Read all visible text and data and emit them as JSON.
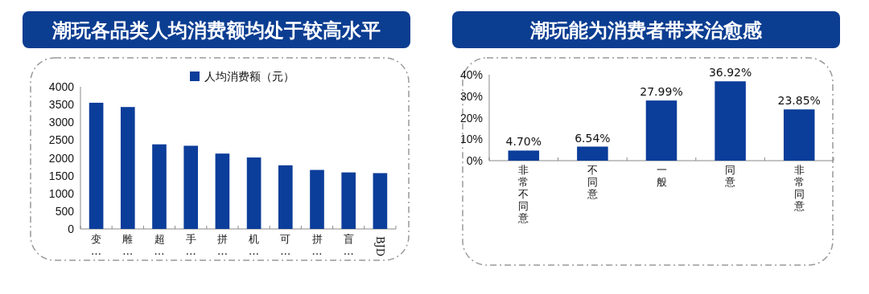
{
  "chart_data": [
    {
      "type": "bar",
      "title": "潮玩各品类人均消费额均处于较高水平",
      "categories": [
        "变…",
        "雕…",
        "超…",
        "手…",
        "拼…",
        "机…",
        "可…",
        "拼…",
        "盲…",
        "BJD"
      ],
      "series": [
        {
          "name": "人均消费额（元）",
          "color": "#0b3d9a",
          "values": [
            3550,
            3430,
            2380,
            2340,
            2120,
            2010,
            1790,
            1660,
            1590,
            1570
          ]
        }
      ],
      "ylim": [
        0,
        4000
      ],
      "yticks": [
        0,
        500,
        1000,
        1500,
        2000,
        2500,
        3000,
        3500,
        4000
      ],
      "legend": "top",
      "grid": false
    },
    {
      "type": "bar",
      "title": "潮玩能为消费者带来治愈感",
      "categories": [
        "非常不同意",
        "不同意",
        "一般",
        "同意",
        "非常同意"
      ],
      "color": "#0b3d9a",
      "values": [
        4.7,
        6.54,
        27.99,
        36.92,
        23.85
      ],
      "value_labels": [
        "4.70%",
        "6.54%",
        "27.99%",
        "36.92%",
        "23.85%"
      ],
      "ylim": [
        0,
        40
      ],
      "yticks": [
        {
          "value": 0,
          "label": "0%"
        },
        {
          "value": 10,
          "label": "10%"
        },
        {
          "value": 20,
          "label": "20%"
        },
        {
          "value": 30,
          "label": "30%"
        },
        {
          "value": 40,
          "label": "40%"
        }
      ],
      "grid": false
    }
  ]
}
